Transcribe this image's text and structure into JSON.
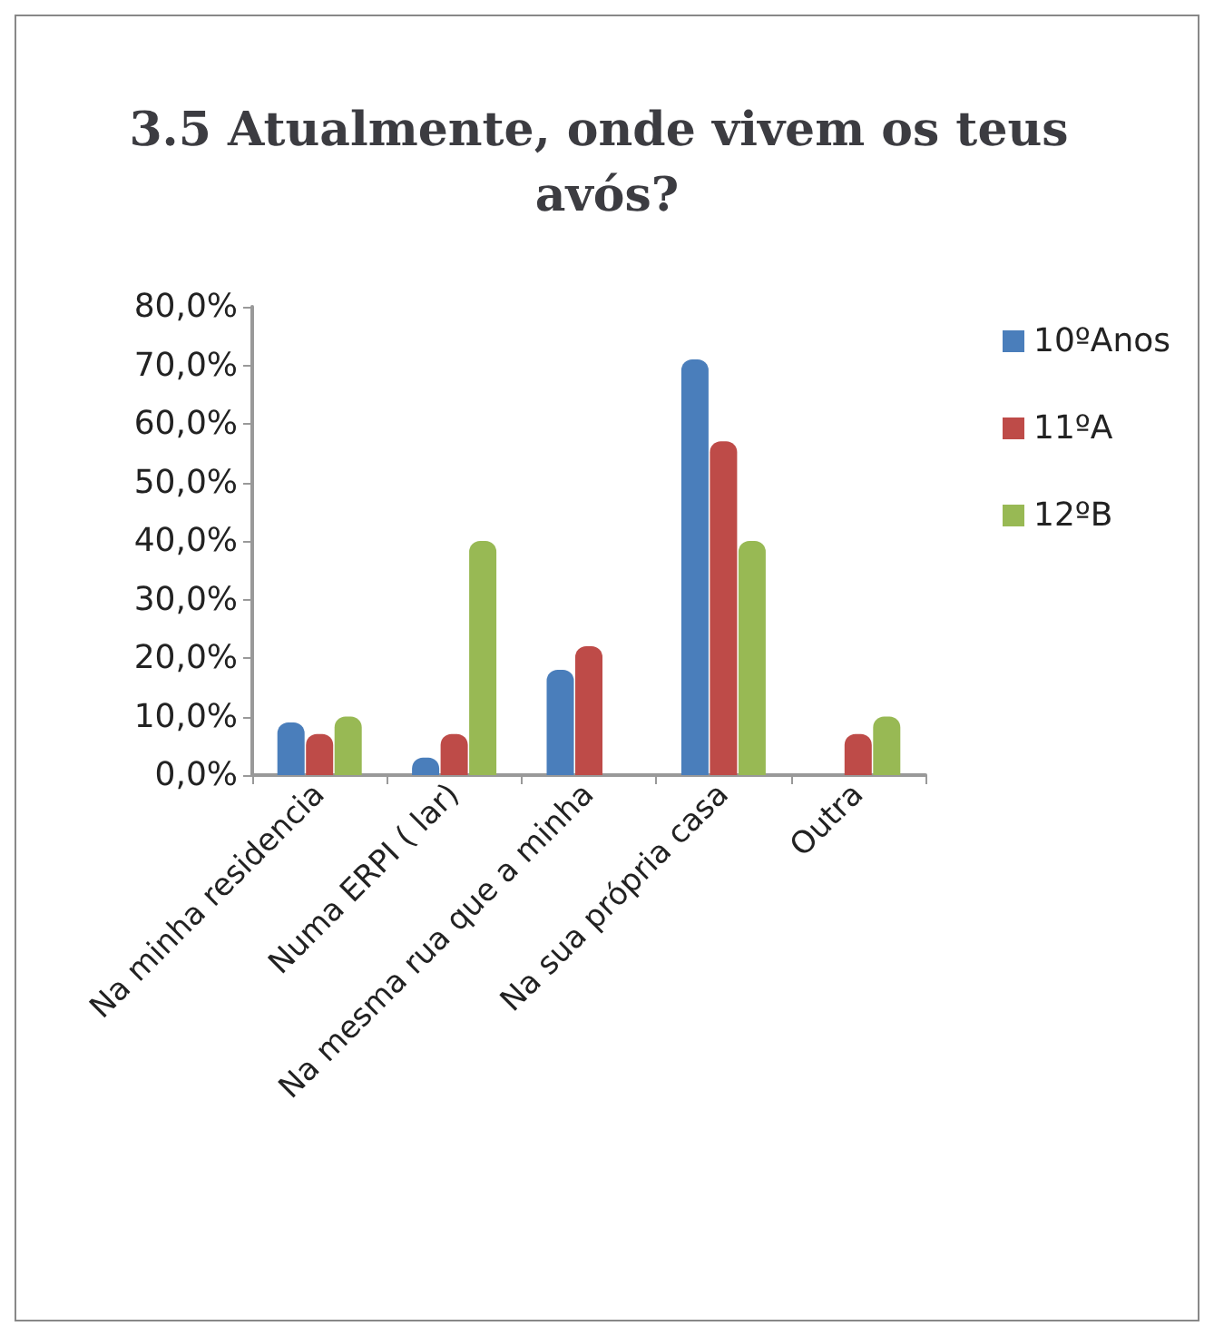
{
  "chart_data": {
    "type": "bar",
    "title": "3.5 Atualmente, onde vivem os teus avós?",
    "categories": [
      "Na minha residencia",
      "Numa ERPI ( lar)",
      "Na mesma rua que a minha",
      "Na sua própria casa",
      "Outra"
    ],
    "series": [
      {
        "name": "10ºAnos",
        "color": "#4a7ebb",
        "values": [
          9,
          3,
          18,
          71,
          0
        ]
      },
      {
        "name": "11ºA",
        "color": "#be4b48",
        "values": [
          7,
          7,
          22,
          57,
          7
        ]
      },
      {
        "name": "12ºB",
        "color": "#98b954",
        "values": [
          10,
          40,
          0,
          40,
          10
        ]
      }
    ],
    "ylim": [
      0,
      80
    ],
    "yticks": [
      {
        "value": 0,
        "label": "0,0%"
      },
      {
        "value": 10,
        "label": "10,0%"
      },
      {
        "value": 20,
        "label": "20,0%"
      },
      {
        "value": 30,
        "label": "30,0%"
      },
      {
        "value": 40,
        "label": "40,0%"
      },
      {
        "value": 50,
        "label": "50,0%"
      },
      {
        "value": 60,
        "label": "60,0%"
      },
      {
        "value": 70,
        "label": "70,0%"
      },
      {
        "value": 80,
        "label": "80,0%"
      }
    ],
    "grid": false,
    "legend": "right"
  }
}
